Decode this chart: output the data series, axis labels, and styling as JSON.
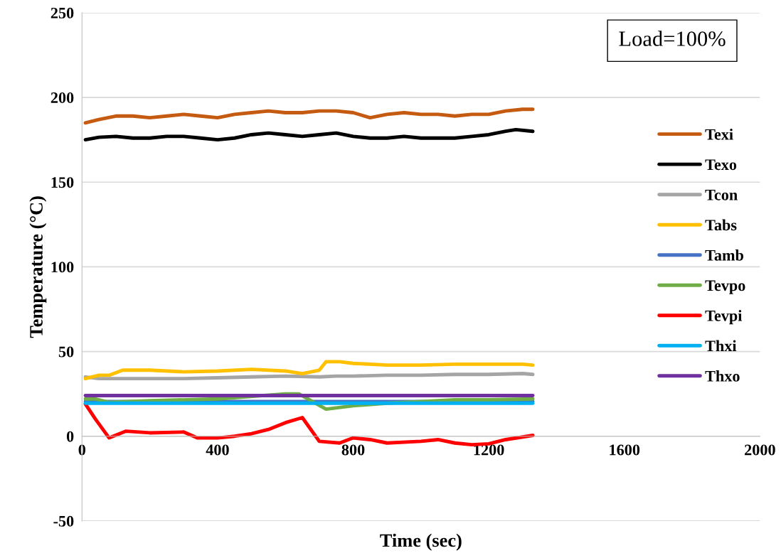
{
  "chart_data": {
    "type": "line",
    "xlabel": "Time (sec)",
    "ylabel": "Temperature (°C)",
    "xlim": [
      0,
      2000
    ],
    "xticks": [
      0,
      400,
      800,
      1200,
      1600,
      2000
    ],
    "ylim": [
      -50,
      250
    ],
    "yticks": [
      -50,
      0,
      50,
      100,
      150,
      200,
      250
    ],
    "grid": "y",
    "legend": "right",
    "marker": "none",
    "line_style": "solid",
    "annotations": [
      "Load=100%"
    ],
    "series": [
      {
        "name": "Texi",
        "color": "#c55a11",
        "x": [
          10,
          50,
          100,
          150,
          200,
          250,
          300,
          350,
          400,
          450,
          500,
          550,
          600,
          650,
          700,
          750,
          800,
          850,
          900,
          950,
          1000,
          1050,
          1100,
          1150,
          1200,
          1250,
          1300,
          1330
        ],
        "values": [
          185,
          187,
          189,
          189,
          188,
          189,
          190,
          189,
          188,
          190,
          191,
          192,
          191,
          191,
          192,
          192,
          191,
          188,
          190,
          191,
          190,
          190,
          189,
          190,
          190,
          192,
          193,
          193
        ]
      },
      {
        "name": "Texo",
        "color": "#000000",
        "x": [
          10,
          50,
          100,
          150,
          200,
          250,
          300,
          350,
          400,
          450,
          500,
          550,
          600,
          650,
          700,
          750,
          800,
          850,
          900,
          950,
          1000,
          1050,
          1100,
          1150,
          1200,
          1250,
          1280,
          1330
        ],
        "values": [
          175,
          176.5,
          177,
          176,
          176,
          177,
          177,
          176,
          175,
          176,
          178,
          179,
          178,
          177,
          178,
          179,
          177,
          176,
          176,
          177,
          176,
          176,
          176,
          177,
          178,
          180,
          181,
          180
        ]
      },
      {
        "name": "Tcon",
        "color": "#a5a5a5",
        "x": [
          10,
          50,
          100,
          200,
          300,
          400,
          500,
          600,
          700,
          750,
          800,
          900,
          1000,
          1100,
          1200,
          1300,
          1330
        ],
        "values": [
          35,
          34,
          34,
          34,
          34,
          34.5,
          35,
          35.5,
          35,
          35.5,
          35.5,
          36,
          36,
          36.5,
          36.5,
          37,
          36.5
        ]
      },
      {
        "name": "Tabs",
        "color": "#ffc000",
        "x": [
          10,
          50,
          80,
          120,
          200,
          300,
          400,
          500,
          600,
          650,
          700,
          720,
          760,
          800,
          900,
          1000,
          1100,
          1200,
          1300,
          1330
        ],
        "values": [
          34,
          36,
          36,
          39,
          39,
          38,
          38.5,
          39.5,
          38.5,
          37,
          39,
          44,
          44,
          43,
          42,
          42,
          42.5,
          42.5,
          42.5,
          42
        ]
      },
      {
        "name": "Tamb",
        "color": "#4472c4",
        "x": [
          10,
          400,
          800,
          1200,
          1330
        ],
        "values": [
          20.5,
          20.5,
          20.5,
          20.5,
          20.5
        ]
      },
      {
        "name": "Tevpo",
        "color": "#70ad47",
        "x": [
          10,
          40,
          80,
          200,
          400,
          600,
          640,
          720,
          800,
          900,
          1000,
          1100,
          1200,
          1330
        ],
        "values": [
          22,
          22,
          20,
          21,
          22,
          25,
          25,
          16,
          18,
          19.5,
          20.5,
          21.5,
          21.5,
          22
        ]
      },
      {
        "name": "Tevpi",
        "color": "#ff0000",
        "x": [
          10,
          40,
          80,
          130,
          200,
          300,
          340,
          400,
          450,
          500,
          550,
          600,
          650,
          700,
          760,
          800,
          850,
          900,
          1000,
          1050,
          1100,
          1150,
          1200,
          1250,
          1330
        ],
        "values": [
          19,
          10,
          -1,
          3,
          2,
          2.5,
          -1,
          -1,
          0,
          1.5,
          4,
          8,
          11,
          -3,
          -4,
          -1,
          -2,
          -4,
          -3,
          -2,
          -4,
          -5,
          -4.5,
          -2,
          0.5
        ]
      },
      {
        "name": "Thxi",
        "color": "#00b0f0",
        "x": [
          10,
          400,
          800,
          1200,
          1330
        ],
        "values": [
          19.5,
          19.5,
          19.5,
          19.5,
          19.5
        ]
      },
      {
        "name": "Thxo",
        "color": "#7030a0",
        "x": [
          10,
          400,
          800,
          1200,
          1330
        ],
        "values": [
          24,
          24,
          24,
          24,
          24
        ]
      }
    ]
  }
}
